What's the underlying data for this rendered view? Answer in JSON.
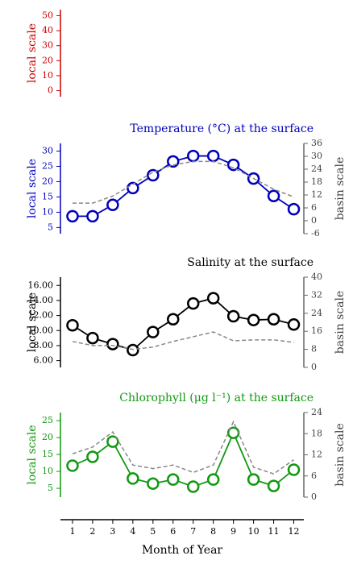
{
  "chart_data": [
    {
      "type": "line",
      "y_label": "local scale",
      "color": "#cc0000",
      "ylim": [
        -4,
        54
      ],
      "yticks": [
        0,
        10,
        20,
        30,
        40,
        50
      ]
    },
    {
      "type": "line",
      "title": "Temperature (°C) at the surface",
      "y_label": "local scale",
      "y2_label": "basin scale",
      "color": "#0000bb",
      "ylim": [
        3,
        32.5
      ],
      "yticks": [
        5,
        10,
        15,
        20,
        25,
        30
      ],
      "y2lim": [
        -6,
        36
      ],
      "y2ticks": [
        -6,
        0,
        6,
        12,
        18,
        24,
        30,
        36
      ],
      "x": [
        1,
        2,
        3,
        4,
        5,
        6,
        7,
        8,
        9,
        10,
        11,
        12
      ],
      "series": [
        {
          "color": "#0000bb",
          "style": "circles",
          "values": [
            8.7,
            8.7,
            12.4,
            17.9,
            22.1,
            26.6,
            28.4,
            28.4,
            25.5,
            21,
            15.3,
            11
          ]
        },
        {
          "color": "#888888",
          "style": "dashed",
          "axis": "y2",
          "values": [
            8.2,
            8.2,
            11.5,
            17,
            22.6,
            26,
            27.6,
            27.6,
            24.7,
            19.7,
            14.7,
            11.1
          ]
        }
      ]
    },
    {
      "type": "line",
      "title": "Salinity at the surface",
      "y_label": "local scale",
      "y2_label": "basin scale",
      "color": "#000000",
      "ylim": [
        5.1,
        17.1
      ],
      "yticks": [
        {
          "value": 6,
          "label": "6.00"
        },
        {
          "value": 8,
          "label": "8.00"
        },
        {
          "value": 10,
          "label": "10.00"
        },
        {
          "value": 12,
          "label": "12.00"
        },
        {
          "value": 14,
          "label": "14.00"
        },
        {
          "value": 16,
          "label": "16.00"
        }
      ],
      "y2lim": [
        0,
        40
      ],
      "y2ticks": [
        0,
        8,
        16,
        24,
        32,
        40
      ],
      "x": [
        1,
        2,
        3,
        4,
        5,
        6,
        7,
        8,
        9,
        10,
        11,
        12
      ],
      "series": [
        {
          "color": "#000000",
          "style": "circles",
          "values": [
            10.7,
            9.0,
            8.2,
            7.4,
            9.8,
            11.5,
            13.6,
            14.3,
            11.9,
            11.4,
            11.5,
            10.8
          ]
        },
        {
          "color": "#888888",
          "style": "dashed",
          "axis": "y2",
          "values": [
            11.5,
            9.7,
            9.7,
            8,
            9,
            11.5,
            13.6,
            15.7,
            11.8,
            12.2,
            12.2,
            11.1
          ]
        }
      ]
    },
    {
      "type": "line",
      "title": "Chlorophyll (μg l⁻¹) at the surface",
      "y_label": "local scale",
      "y2_label": "basin scale",
      "color": "#119911",
      "ylim": [
        2.4,
        27.4
      ],
      "yticks": [
        5,
        10,
        15,
        20,
        25
      ],
      "y2lim": [
        0,
        24
      ],
      "y2ticks": [
        0,
        6,
        12,
        18,
        24
      ],
      "x": [
        1,
        2,
        3,
        4,
        5,
        6,
        7,
        8,
        9,
        10,
        11,
        12
      ],
      "xlim": [
        0.4,
        12.5
      ],
      "xticks": [
        1,
        2,
        3,
        4,
        5,
        6,
        7,
        8,
        9,
        10,
        11,
        12
      ],
      "xlabel": "Month of Year",
      "series": [
        {
          "color": "#119911",
          "style": "circles",
          "values": [
            11.7,
            14.3,
            18.8,
            7.9,
            6.4,
            7.6,
            5.5,
            7.6,
            21.4,
            7.6,
            5.7,
            10.5
          ]
        },
        {
          "color": "#888888",
          "style": "dashed",
          "axis": "y2",
          "values": [
            12.3,
            14.2,
            18.5,
            9.1,
            8.1,
            9.1,
            7,
            9.1,
            21.4,
            8.5,
            6.6,
            10.6
          ]
        }
      ]
    }
  ]
}
